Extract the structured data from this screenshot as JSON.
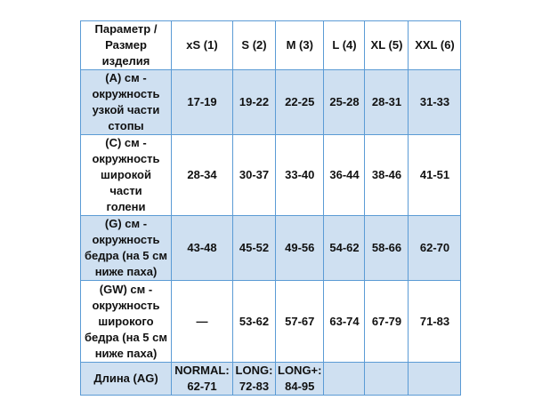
{
  "header": [
    "Параметр / Размер изделия",
    "xS (1)",
    "S (2)",
    "M (3)",
    "L (4)",
    "XL (5)",
    "XXL (6)"
  ],
  "rows": [
    {
      "label": "(A) см - окружность узкой части стопы",
      "values": [
        "17-19",
        "19-22",
        "22-25",
        "25-28",
        "28-31",
        "31-33"
      ],
      "shaded": true
    },
    {
      "label": "(C) см - окружность широкой части голени",
      "values": [
        "28-34",
        "30-37",
        "33-40",
        "36-44",
        "38-46",
        "41-51"
      ],
      "shaded": false
    },
    {
      "label": "(G) см - окружность бедра (на 5 см ниже паха)",
      "values": [
        "43-48",
        "45-52",
        "49-56",
        "54-62",
        "58-66",
        "62-70"
      ],
      "shaded": true
    },
    {
      "label": "(GW) см - окружность широкого бедра (на 5 см ниже паха)",
      "values": [
        "—",
        "53-62",
        "57-67",
        "63-74",
        "67-79",
        "71-83"
      ],
      "shaded": false
    },
    {
      "label": "Длина (AG)",
      "values": [
        "NORMAL: 62-71",
        "LONG: 72-83",
        "LONG+: 84-95",
        "",
        "",
        ""
      ],
      "shaded": true
    }
  ],
  "colors": {
    "border": "#5b9bd5",
    "shade": "#cfe0f1"
  }
}
